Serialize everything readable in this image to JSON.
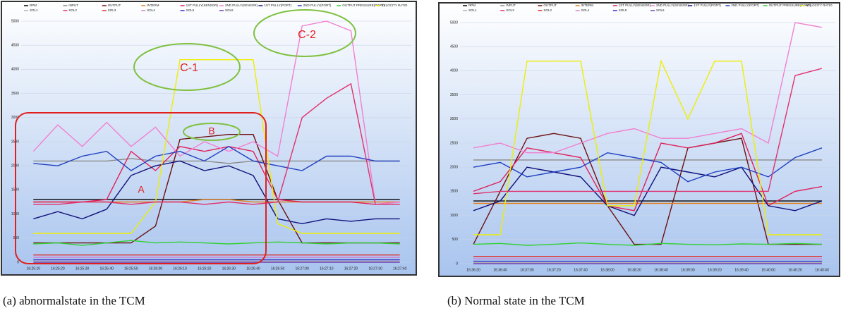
{
  "chart_data": [
    {
      "type": "line",
      "caption": "(a)   abnormalstate in the TCM",
      "annotations": [
        "A",
        "B",
        "C-1",
        "C-2"
      ],
      "categories": [
        "16:25:10",
        "16:25:20",
        "16:25:30",
        "16:25:40",
        "16:25:50",
        "16:26:00",
        "16:26:10",
        "16:26:20",
        "16:26:30",
        "16:26:40",
        "16:26:50",
        "16:27:00",
        "16:27:10",
        "16:27:20",
        "16:27:30",
        "16:27:40"
      ],
      "ylim": [
        0,
        5000
      ],
      "yticks": [
        0,
        500,
        1000,
        1500,
        2000,
        2500,
        3000,
        3500,
        4000,
        4500,
        5000
      ],
      "series": [
        {
          "name": "RPM",
          "color": "#000000",
          "values": [
            1300,
            1300,
            1300,
            1300,
            1300,
            1300,
            1300,
            1300,
            1300,
            1300,
            1300,
            1300,
            1300,
            1300,
            1300,
            1300
          ]
        },
        {
          "name": "INPUT",
          "color": "#8a8a8a",
          "values": [
            2100,
            2100,
            2100,
            2100,
            2150,
            2100,
            2100,
            2100,
            2050,
            2100,
            2100,
            2100,
            2100,
            2100,
            2100,
            2100
          ]
        },
        {
          "name": "OUTPUT",
          "color": "#6b1010",
          "values": [
            400,
            400,
            400,
            400,
            400,
            750,
            2550,
            2600,
            2650,
            2650,
            1300,
            400,
            400,
            400,
            400,
            400
          ]
        },
        {
          "name": "INTERM",
          "color": "#e08020",
          "values": [
            1250,
            1250,
            1250,
            1250,
            1250,
            1250,
            1250,
            1300,
            1300,
            1250,
            1250,
            1250,
            1250,
            1250,
            1250,
            1250
          ]
        },
        {
          "name": "1ST PULLY(SENSOR)",
          "color": "#e0205a",
          "values": [
            1250,
            1250,
            1250,
            1300,
            2300,
            1900,
            2400,
            2300,
            2400,
            2300,
            1300,
            1250,
            1250,
            1250,
            1200,
            1250
          ]
        },
        {
          "name": "2ND PULLY(SENSOR)",
          "color": "#f080d0",
          "values": [
            2300,
            2850,
            2400,
            2900,
            2400,
            2800,
            2200,
            2500,
            2300,
            2500,
            2200,
            4900,
            5000,
            4800,
            1200,
            1250
          ]
        },
        {
          "name": "1ST PULLY(PORT)",
          "color": "#10107a",
          "values": [
            900,
            1050,
            900,
            1100,
            1800,
            2000,
            2100,
            1900,
            2000,
            1800,
            900,
            800,
            900,
            850,
            900,
            900
          ]
        },
        {
          "name": "2ND PULLY(PORT)",
          "color": "#2040c0",
          "values": [
            2050,
            2000,
            2200,
            2300,
            1900,
            2200,
            2300,
            2100,
            2400,
            2100,
            2000,
            1900,
            2200,
            2200,
            2100,
            2100
          ]
        },
        {
          "name": "OUTPUT PRESSURE(PORT)",
          "color": "#30d030",
          "values": [
            380,
            400,
            350,
            400,
            450,
            400,
            420,
            400,
            380,
            400,
            420,
            400,
            380,
            400,
            400,
            380
          ]
        },
        {
          "name": "VELOCITY RATIO",
          "color": "#eeee00",
          "values": [
            600,
            600,
            600,
            600,
            600,
            1250,
            4200,
            4200,
            4200,
            4200,
            800,
            600,
            600,
            600,
            600,
            600
          ]
        },
        {
          "name": "SOL1",
          "color": "#b0b0b0",
          "values": [
            20,
            20,
            20,
            20,
            20,
            20,
            20,
            20,
            20,
            20,
            20,
            20,
            20,
            20,
            20,
            20
          ]
        },
        {
          "name": "SOL2",
          "color": "#e0306e",
          "values": [
            1200,
            1200,
            1250,
            1250,
            1200,
            1250,
            1250,
            1200,
            1250,
            1200,
            1250,
            3000,
            3400,
            3700,
            1200,
            1200
          ]
        },
        {
          "name": "SOL3",
          "color": "#e03030",
          "values": [
            150,
            150,
            150,
            150,
            150,
            150,
            150,
            150,
            150,
            150,
            150,
            150,
            150,
            150,
            150,
            150
          ]
        },
        {
          "name": "SOL4",
          "color": "#d080d0",
          "values": [
            100,
            100,
            100,
            100,
            100,
            100,
            100,
            100,
            100,
            100,
            100,
            100,
            100,
            100,
            100,
            100
          ]
        },
        {
          "name": "SOL5",
          "color": "#3030c0",
          "values": [
            50,
            50,
            50,
            50,
            50,
            50,
            50,
            50,
            50,
            50,
            50,
            50,
            50,
            50,
            50,
            50
          ]
        },
        {
          "name": "SOL6",
          "color": "#7040b0",
          "values": [
            0,
            0,
            0,
            0,
            0,
            0,
            0,
            0,
            0,
            0,
            0,
            0,
            0,
            0,
            0,
            0
          ]
        }
      ]
    },
    {
      "type": "line",
      "caption": "(b)  Normal state in the TCM",
      "categories": [
        "16:36:20",
        "16:36:40",
        "16:37:00",
        "16:37:20",
        "16:37:40",
        "16:38:00",
        "16:38:20",
        "16:38:40",
        "16:39:00",
        "16:39:20",
        "16:39:40",
        "16:40:00",
        "16:40:20",
        "16:40:40"
      ],
      "ylim": [
        0,
        5000
      ],
      "yticks": [
        0,
        500,
        1000,
        1500,
        2000,
        2500,
        3000,
        3500,
        4000,
        4500,
        5000
      ],
      "series": [
        {
          "name": "RPM",
          "color": "#000000",
          "values": [
            1300,
            1300,
            1300,
            1300,
            1300,
            1300,
            1300,
            1300,
            1300,
            1300,
            1300,
            1300,
            1300,
            1300
          ]
        },
        {
          "name": "INPUT",
          "color": "#8a8a8a",
          "values": [
            2150,
            2150,
            2150,
            2150,
            2150,
            2150,
            2150,
            2150,
            2150,
            2150,
            2150,
            2150,
            2150,
            2150
          ]
        },
        {
          "name": "OUTPUT",
          "color": "#6b1010",
          "values": [
            400,
            1500,
            2600,
            2700,
            2600,
            1200,
            400,
            400,
            2400,
            2500,
            2600,
            400,
            400,
            400
          ]
        },
        {
          "name": "INTERM",
          "color": "#e08020",
          "values": [
            1250,
            1250,
            1250,
            1250,
            1250,
            1250,
            1250,
            1250,
            1250,
            1250,
            1250,
            1250,
            1250,
            1250
          ]
        },
        {
          "name": "1ST PULLY(SENSOR)",
          "color": "#e0205a",
          "values": [
            1500,
            1700,
            2400,
            2300,
            2200,
            1200,
            1100,
            2500,
            2400,
            2500,
            2700,
            1200,
            1500,
            1600
          ]
        },
        {
          "name": "2ND PULLY(SENSOR)",
          "color": "#f080d0",
          "values": [
            2400,
            2500,
            2300,
            2300,
            2500,
            2700,
            2800,
            2600,
            2600,
            2700,
            2800,
            2500,
            5000,
            4900
          ]
        },
        {
          "name": "1ST PULLY(PORT)",
          "color": "#10107a",
          "values": [
            1100,
            1300,
            2000,
            1900,
            1800,
            1200,
            1000,
            2000,
            1900,
            1800,
            2000,
            1200,
            1100,
            1300
          ]
        },
        {
          "name": "2ND PULLY(PORT)",
          "color": "#2040c0",
          "values": [
            2000,
            2100,
            1800,
            1900,
            2000,
            2300,
            2200,
            2100,
            1700,
            1900,
            2000,
            1800,
            2200,
            2400
          ]
        },
        {
          "name": "OUTPUT PRESSURE(PORT)",
          "color": "#30d030",
          "values": [
            400,
            420,
            380,
            400,
            430,
            400,
            380,
            420,
            400,
            390,
            410,
            400,
            420,
            400
          ]
        },
        {
          "name": "VELOCITY RATIO",
          "color": "#eeee00",
          "values": [
            600,
            600,
            4200,
            4200,
            4200,
            1200,
            1200,
            4200,
            3000,
            4200,
            4200,
            600,
            600,
            600
          ]
        },
        {
          "name": "SOL1",
          "color": "#b0b0b0",
          "values": [
            20,
            20,
            20,
            20,
            20,
            20,
            20,
            20,
            20,
            20,
            20,
            20,
            20,
            20
          ]
        },
        {
          "name": "SOL2",
          "color": "#e0306e",
          "values": [
            1450,
            1500,
            1500,
            1500,
            1500,
            1500,
            1500,
            1500,
            1500,
            1500,
            1500,
            1500,
            3900,
            4050
          ]
        },
        {
          "name": "SOL3",
          "color": "#e03030",
          "values": [
            150,
            150,
            150,
            150,
            150,
            150,
            150,
            150,
            150,
            150,
            150,
            150,
            150,
            150
          ]
        },
        {
          "name": "SOL4",
          "color": "#d080d0",
          "values": [
            100,
            100,
            100,
            100,
            100,
            100,
            100,
            100,
            100,
            100,
            100,
            100,
            100,
            100
          ]
        },
        {
          "name": "SOL5",
          "color": "#3030c0",
          "values": [
            50,
            50,
            50,
            50,
            50,
            50,
            50,
            50,
            50,
            50,
            50,
            50,
            50,
            50
          ]
        },
        {
          "name": "SOL6",
          "color": "#7040b0",
          "values": [
            0,
            0,
            0,
            0,
            0,
            0,
            0,
            0,
            0,
            0,
            0,
            0,
            0,
            0
          ]
        }
      ]
    }
  ]
}
